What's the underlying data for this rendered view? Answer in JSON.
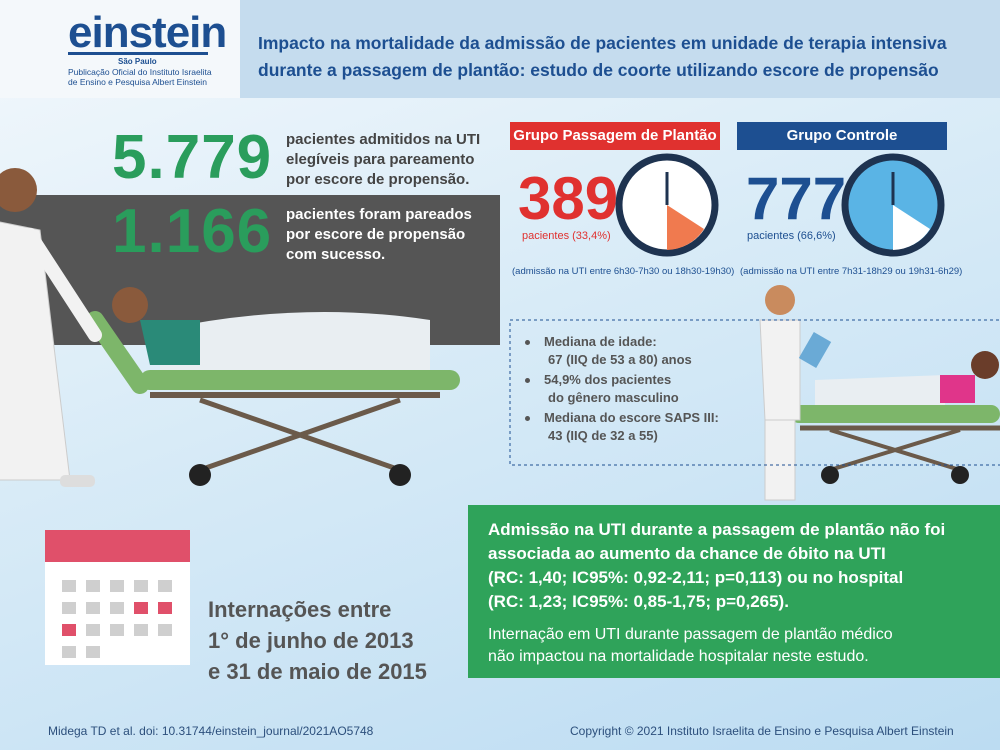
{
  "header": {
    "logo": "einstein",
    "city": "São Paulo",
    "publisher": [
      "Publicação Oficial do Instituto Israelita",
      "de Ensino e Pesquisa Albert Einstein"
    ],
    "title": [
      "Impacto na mortalidade da admissão de pacientes em unidade de terapia intensiva",
      "durante a passagem de plantão: estudo de coorte utilizando escore de propensão"
    ]
  },
  "stats": [
    {
      "number": "5.779",
      "text": [
        "pacientes admitidos na UTI",
        "elegíveis para pareamento",
        "por escore de propensão."
      ]
    },
    {
      "number": "1.166",
      "text": [
        "pacientes foram pareados",
        "por escore de propensão",
        "com sucesso."
      ]
    }
  ],
  "groups": [
    {
      "name": "Grupo Passagem de Plantão",
      "count": "389",
      "percent": "pacientes (33,4%)",
      "note": "(admissão na UTI entre 6h30-7h30 ou 18h30-19h30)"
    },
    {
      "name": "Grupo Controle",
      "count": "777",
      "percent": "pacientes (66,6%)",
      "note": "(admissão na UTI entre 7h31-18h29 ou 19h31-6h29)"
    }
  ],
  "bullets": [
    [
      "Mediana de idade:",
      "67 (IIQ de 53 a 80) anos"
    ],
    [
      "54,9% dos pacientes",
      "do gênero masculino"
    ],
    [
      "Mediana do escore SAPS III:",
      "43 (IIQ de 32 a 55)"
    ]
  ],
  "period": [
    "Internações entre",
    "1° de junho de 2013",
    "e 31 de maio de 2015"
  ],
  "conclusion": {
    "main": [
      "Admissão na UTI durante a passagem de plantão não foi",
      "associada ao aumento da chance de óbito na UTI",
      "(RC: 1,40; IC95%: 0,92-2,11; p=0,113) ou no hospital",
      "(RC: 1,23; IC95%: 0,85-1,75; p=0,265)."
    ],
    "secondary": [
      "Internação em UTI durante passagem de plantão médico",
      "não impactou na mortalidade hospitalar neste estudo."
    ]
  },
  "footer": {
    "citation": "Midega TD et al.   doi: 10.31744/einstein_journal/2021AO5748",
    "copyright": "Copyright © 2021 Instituto Israelita de Ensino e Pesquisa Albert Einstein"
  }
}
